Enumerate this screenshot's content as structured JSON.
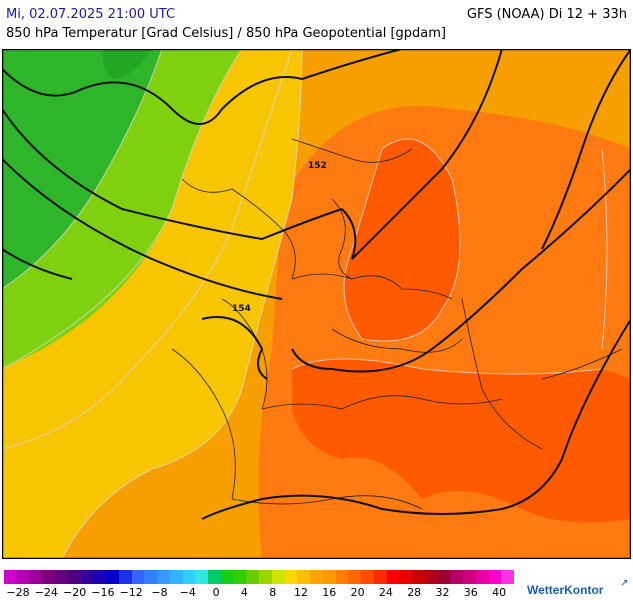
{
  "header": {
    "datetime": "Mi, 02.07.2025 21:00 UTC",
    "model": "GFS (NOAA) Di 12 + 33h",
    "subtitle": "850 hPa Temperatur [Grad Celsius] / 850 hPa Geopotential [gpdam]"
  },
  "map": {
    "contour_labels": [
      "152",
      "154"
    ],
    "regions": [
      {
        "name": "cold-west",
        "color": "#2fb52a"
      },
      {
        "name": "cool-green",
        "color": "#7fd10f"
      },
      {
        "name": "mild-yellow",
        "color": "#f7c600"
      },
      {
        "name": "warm-orange",
        "color": "#f79f00"
      },
      {
        "name": "hot-orange",
        "color": "#ff7a10"
      },
      {
        "name": "hot-core",
        "color": "#ff5a00"
      }
    ]
  },
  "legend": {
    "colors": [
      "#cc00cc",
      "#b200b2",
      "#990099",
      "#7f007f",
      "#66007f",
      "#4c007f",
      "#330099",
      "#1a00b2",
      "#0000cc",
      "#1a33e6",
      "#3366ff",
      "#3380ff",
      "#3399ff",
      "#33b2ff",
      "#33ccff",
      "#33e6e6",
      "#00cc66",
      "#19cc19",
      "#33cc00",
      "#66cc00",
      "#99d600",
      "#cce600",
      "#ffd900",
      "#ffbf00",
      "#ffa600",
      "#ff9900",
      "#ff8000",
      "#ff6600",
      "#ff4c00",
      "#ff2600",
      "#ff0000",
      "#e60000",
      "#cc0000",
      "#b2001a",
      "#990033",
      "#b20066",
      "#cc0080",
      "#e600a6",
      "#ff00cc",
      "#ff33e6"
    ],
    "ticks": [
      "−28",
      "−24",
      "−20",
      "−16",
      "−12",
      "−8",
      "−4",
      "0",
      "4",
      "8",
      "12",
      "16",
      "20",
      "24",
      "28",
      "32",
      "36",
      "40"
    ]
  },
  "branding": {
    "logo": "WetterKontor"
  }
}
